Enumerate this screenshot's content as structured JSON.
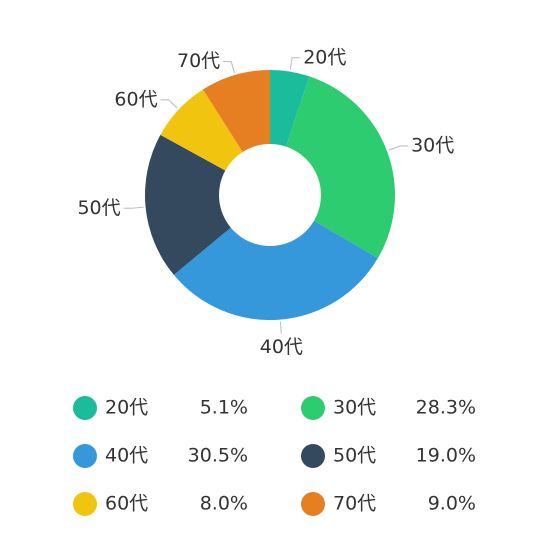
{
  "chart_data": {
    "type": "pie",
    "categories": [
      "20代",
      "30代",
      "40代",
      "50代",
      "60代",
      "70代"
    ],
    "values": [
      5.1,
      28.3,
      30.5,
      19.0,
      8.0,
      9.0
    ],
    "value_labels": [
      "5.1%",
      "28.3%",
      "30.5%",
      "19.0%",
      "8.0%",
      "9.0%"
    ],
    "colors": [
      "#1abc9c",
      "#2ecc71",
      "#3498db",
      "#34495e",
      "#f1c40f",
      "#e67e22"
    ]
  }
}
